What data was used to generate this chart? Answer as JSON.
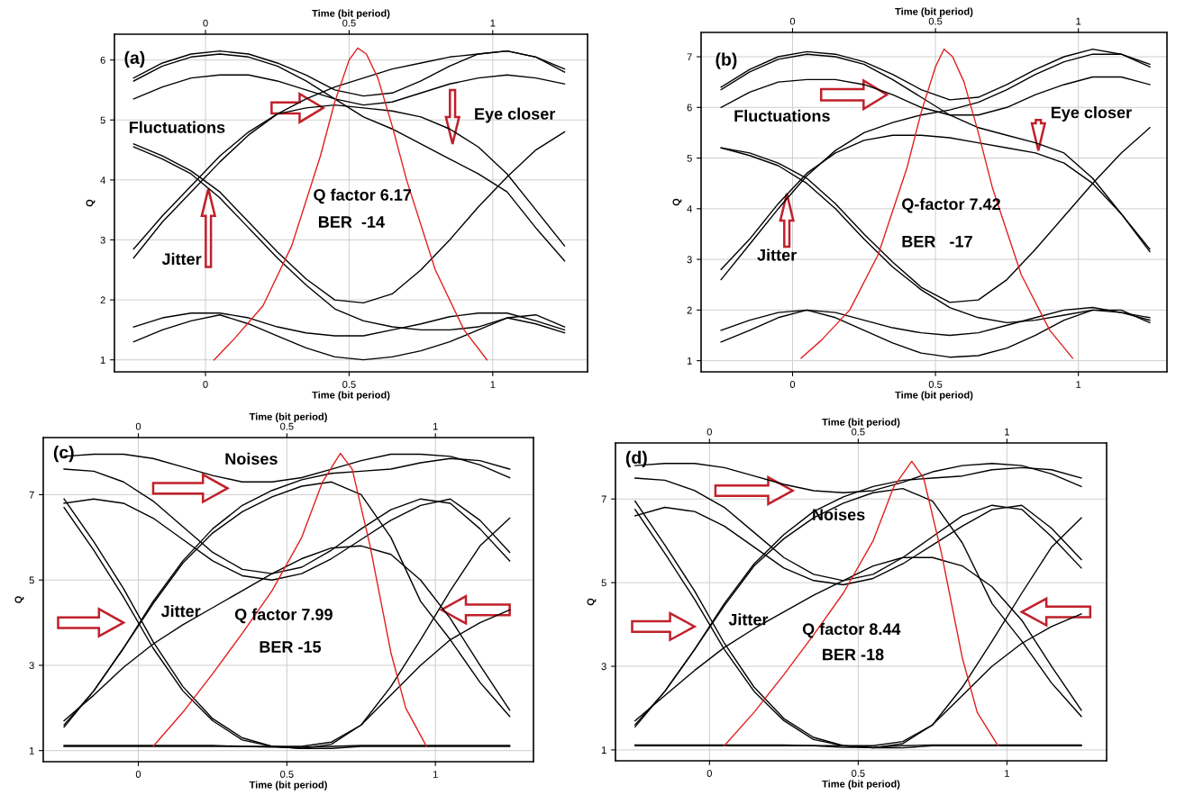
{
  "chart_data": [
    {
      "type": "line",
      "xlabel": "Time (bit period)",
      "x2label": "Time (bit period)",
      "ylabel": "Q",
      "xlim": [
        -0.317,
        1.33
      ],
      "xticks": [
        0,
        0.5,
        1
      ],
      "x2lim": [
        -0.317,
        1.33
      ],
      "x2ticks": [
        0,
        0.5,
        1
      ],
      "ylim": [
        0.8,
        6.43
      ],
      "yticks": [
        1,
        2,
        3,
        4,
        5,
        6
      ],
      "grid": true,
      "line_style": "solid",
      "marker": "none",
      "annotations": [
        "(a)",
        "Fluctuations",
        "Eye closer",
        "Jitter",
        "Q factor 6.17",
        "BER  -14"
      ],
      "x": [
        -0.25,
        -0.15,
        -0.05,
        0.05,
        0.15,
        0.25,
        0.35,
        0.45,
        0.55,
        0.65,
        0.75,
        0.85,
        0.95,
        1.05,
        1.15,
        1.25
      ],
      "series": [
        {
          "color": "#000000",
          "values": [
            5.7,
            5.95,
            6.1,
            6.15,
            6.1,
            5.95,
            5.75,
            5.5,
            5.4,
            5.45,
            5.65,
            5.9,
            6.1,
            6.15,
            6.05,
            5.8
          ]
        },
        {
          "color": "#000000",
          "values": [
            5.65,
            5.9,
            6.05,
            6.1,
            6.05,
            5.9,
            5.65,
            5.35,
            5.05,
            4.85,
            4.6,
            4.35,
            4.1,
            3.8,
            3.2,
            2.65
          ]
        },
        {
          "color": "#000000",
          "values": [
            5.35,
            5.55,
            5.7,
            5.75,
            5.75,
            5.65,
            5.5,
            5.35,
            5.25,
            5.3,
            5.45,
            5.6,
            5.7,
            5.75,
            5.7,
            5.6
          ]
        },
        {
          "color": "#000000",
          "values": [
            2.7,
            3.3,
            3.8,
            4.3,
            4.75,
            5.1,
            5.35,
            5.55,
            5.7,
            5.85,
            5.95,
            6.05,
            6.1,
            6.15,
            6.05,
            5.85
          ]
        },
        {
          "color": "#000000",
          "values": [
            2.85,
            3.4,
            3.9,
            4.4,
            4.8,
            5.1,
            5.2,
            5.25,
            5.2,
            5.15,
            5.05,
            4.85,
            4.55,
            4.1,
            3.5,
            2.9
          ]
        },
        {
          "color": "#000000",
          "values": [
            4.6,
            4.4,
            4.15,
            3.8,
            3.3,
            2.8,
            2.35,
            2.0,
            1.95,
            2.1,
            2.5,
            3.0,
            3.55,
            4.05,
            4.5,
            4.8
          ]
        },
        {
          "color": "#000000",
          "values": [
            4.55,
            4.35,
            4.1,
            3.7,
            3.2,
            2.7,
            2.25,
            1.85,
            1.65,
            1.55,
            1.5,
            1.5,
            1.55,
            1.7,
            1.6,
            1.45
          ]
        },
        {
          "color": "#000000",
          "values": [
            1.55,
            1.7,
            1.78,
            1.78,
            1.7,
            1.55,
            1.45,
            1.4,
            1.4,
            1.5,
            1.6,
            1.72,
            1.78,
            1.78,
            1.65,
            1.5
          ]
        },
        {
          "color": "#000000",
          "values": [
            1.3,
            1.5,
            1.65,
            1.75,
            1.6,
            1.4,
            1.2,
            1.05,
            1.0,
            1.05,
            1.15,
            1.3,
            1.5,
            1.7,
            1.75,
            1.55
          ]
        },
        {
          "color": "#e02020",
          "x": [
            0.03,
            0.1,
            0.2,
            0.3,
            0.4,
            0.45,
            0.5,
            0.53,
            0.56,
            0.6,
            0.65,
            0.7,
            0.8,
            0.9,
            0.98
          ],
          "values": [
            1.0,
            1.35,
            1.9,
            2.9,
            4.4,
            5.3,
            6.0,
            6.2,
            6.1,
            5.7,
            4.9,
            4.0,
            2.5,
            1.5,
            1.0
          ]
        }
      ]
    },
    {
      "type": "line",
      "xlabel": "Time (bit period)",
      "x2label": "Time (bit period)",
      "ylabel": "Q",
      "xlim": [
        -0.32,
        1.31
      ],
      "xticks": [
        0,
        0.5,
        1
      ],
      "x2lim": [
        -0.32,
        1.31
      ],
      "x2ticks": [
        0,
        0.5,
        1
      ],
      "ylim": [
        0.78,
        7.48
      ],
      "yticks": [
        1,
        2,
        3,
        4,
        5,
        6,
        7
      ],
      "grid": true,
      "line_style": "solid",
      "marker": "none",
      "annotations": [
        "(b)",
        "Fluctuations",
        "Eye closer",
        "Jitter",
        "Q-factor 7.42",
        "BER   -17"
      ],
      "x": [
        -0.25,
        -0.15,
        -0.05,
        0.05,
        0.15,
        0.25,
        0.35,
        0.45,
        0.55,
        0.65,
        0.75,
        0.85,
        0.95,
        1.05,
        1.15,
        1.25
      ],
      "series": [
        {
          "color": "#000000",
          "values": [
            6.4,
            6.75,
            7.0,
            7.1,
            7.05,
            6.9,
            6.65,
            6.35,
            6.15,
            6.2,
            6.45,
            6.75,
            7.0,
            7.15,
            7.05,
            6.8
          ]
        },
        {
          "color": "#000000",
          "values": [
            6.35,
            6.7,
            6.95,
            7.05,
            7.0,
            6.85,
            6.55,
            6.2,
            5.85,
            5.6,
            5.45,
            5.3,
            5.1,
            4.6,
            3.9,
            3.15
          ]
        },
        {
          "color": "#000000",
          "values": [
            6.0,
            6.3,
            6.5,
            6.55,
            6.55,
            6.45,
            6.25,
            6.0,
            5.85,
            5.85,
            6.0,
            6.25,
            6.45,
            6.6,
            6.6,
            6.45
          ]
        },
        {
          "color": "#000000",
          "values": [
            2.6,
            3.3,
            4.0,
            4.65,
            5.15,
            5.5,
            5.7,
            5.85,
            5.95,
            6.1,
            6.35,
            6.65,
            6.9,
            7.05,
            7.05,
            6.85
          ]
        },
        {
          "color": "#000000",
          "values": [
            2.8,
            3.4,
            4.1,
            4.7,
            5.1,
            5.35,
            5.45,
            5.45,
            5.4,
            5.3,
            5.2,
            5.1,
            4.9,
            4.5,
            3.9,
            3.2
          ]
        },
        {
          "color": "#000000",
          "values": [
            5.2,
            5.1,
            4.9,
            4.6,
            4.1,
            3.5,
            2.95,
            2.45,
            2.15,
            2.2,
            2.6,
            3.2,
            3.85,
            4.5,
            5.1,
            5.6
          ]
        },
        {
          "color": "#000000",
          "values": [
            5.2,
            5.05,
            4.85,
            4.5,
            4.0,
            3.4,
            2.85,
            2.4,
            2.05,
            1.85,
            1.75,
            1.8,
            1.9,
            2.0,
            1.95,
            1.85
          ]
        },
        {
          "color": "#000000",
          "values": [
            1.6,
            1.8,
            1.95,
            2.0,
            1.95,
            1.8,
            1.65,
            1.55,
            1.5,
            1.55,
            1.7,
            1.85,
            2.0,
            2.05,
            1.95,
            1.8
          ]
        },
        {
          "color": "#000000",
          "values": [
            1.37,
            1.6,
            1.85,
            2.0,
            1.85,
            1.6,
            1.35,
            1.15,
            1.07,
            1.1,
            1.25,
            1.5,
            1.8,
            2.0,
            2.0,
            1.75
          ]
        },
        {
          "color": "#e02020",
          "x": [
            0.03,
            0.1,
            0.2,
            0.3,
            0.4,
            0.45,
            0.5,
            0.53,
            0.56,
            0.6,
            0.65,
            0.7,
            0.8,
            0.9,
            0.98
          ],
          "values": [
            1.05,
            1.4,
            2.0,
            3.1,
            4.8,
            5.9,
            6.8,
            7.15,
            7.0,
            6.5,
            5.5,
            4.4,
            2.7,
            1.6,
            1.05
          ]
        }
      ]
    },
    {
      "type": "line",
      "xlabel": "Time (bit period)",
      "x2label": "Time (bit period)",
      "ylabel": "Q",
      "xlim": [
        -0.32,
        1.33
      ],
      "xticks": [
        0,
        0.5,
        1
      ],
      "x2lim": [
        -0.32,
        1.33
      ],
      "x2ticks": [
        0,
        0.5,
        1
      ],
      "ylim": [
        0.74,
        8.34
      ],
      "yticks": [
        1,
        3,
        5,
        7
      ],
      "grid": true,
      "line_style": "solid",
      "marker": "none",
      "annotations": [
        "(c)",
        "Noises",
        "Jitter",
        "Q factor 7.99",
        "BER -15"
      ],
      "x": [
        -0.25,
        -0.15,
        -0.05,
        0.05,
        0.15,
        0.25,
        0.35,
        0.45,
        0.55,
        0.65,
        0.75,
        0.85,
        0.95,
        1.05,
        1.15,
        1.25
      ],
      "series": [
        {
          "color": "#000000",
          "values": [
            7.9,
            7.95,
            7.95,
            7.85,
            7.65,
            7.45,
            7.3,
            7.3,
            7.4,
            7.6,
            7.8,
            7.95,
            7.95,
            7.9,
            7.7,
            7.4
          ]
        },
        {
          "color": "#000000",
          "values": [
            7.6,
            7.55,
            7.3,
            6.85,
            6.25,
            5.65,
            5.25,
            5.15,
            5.3,
            5.7,
            6.2,
            6.65,
            6.9,
            6.8,
            6.2,
            5.45
          ]
        },
        {
          "color": "#000000",
          "values": [
            6.8,
            6.9,
            6.8,
            6.45,
            5.95,
            5.45,
            5.1,
            5.0,
            5.15,
            5.5,
            5.95,
            6.4,
            6.75,
            6.9,
            6.4,
            5.65
          ]
        },
        {
          "color": "#000000",
          "values": [
            1.55,
            2.4,
            3.4,
            4.5,
            5.45,
            6.2,
            6.75,
            7.1,
            7.35,
            7.5,
            7.55,
            7.6,
            7.75,
            7.85,
            7.8,
            7.6
          ]
        },
        {
          "color": "#000000",
          "values": [
            1.6,
            2.4,
            3.4,
            4.45,
            5.4,
            6.1,
            6.6,
            6.95,
            7.2,
            7.3,
            7.0,
            6.0,
            4.5,
            3.6,
            2.6,
            1.8
          ]
        },
        {
          "color": "#000000",
          "values": [
            6.9,
            5.9,
            4.8,
            3.55,
            2.5,
            1.75,
            1.3,
            1.1,
            1.05,
            1.15,
            1.6,
            2.5,
            3.6,
            4.75,
            5.8,
            6.45
          ]
        },
        {
          "color": "#000000",
          "values": [
            6.7,
            5.7,
            4.6,
            3.4,
            2.4,
            1.7,
            1.25,
            1.1,
            1.05,
            1.05,
            1.1,
            1.1,
            1.1,
            1.1,
            1.1,
            1.1
          ]
        },
        {
          "color": "#000000",
          "values": [
            1.7,
            2.3,
            2.95,
            3.5,
            3.95,
            4.35,
            4.75,
            5.15,
            5.5,
            5.75,
            5.8,
            5.6,
            5.0,
            4.1,
            3.0,
            1.95
          ]
        },
        {
          "color": "#000000",
          "values": [
            1.1,
            1.1,
            1.1,
            1.1,
            1.1,
            1.1,
            1.1,
            1.1,
            1.1,
            1.2,
            1.6,
            2.3,
            3.0,
            3.6,
            4.0,
            4.3
          ]
        },
        {
          "color": "#000000",
          "values": [
            1.12,
            1.12,
            1.12,
            1.12,
            1.12,
            1.12,
            1.1,
            1.08,
            1.08,
            1.1,
            1.12,
            1.12,
            1.12,
            1.12,
            1.12,
            1.12
          ]
        },
        {
          "color": "#e02020",
          "x": [
            0.05,
            0.15,
            0.25,
            0.35,
            0.45,
            0.55,
            0.62,
            0.68,
            0.72,
            0.78,
            0.85,
            0.9,
            0.97
          ],
          "values": [
            1.1,
            1.9,
            2.8,
            3.75,
            4.75,
            6.0,
            7.3,
            7.97,
            7.6,
            5.8,
            3.3,
            2.0,
            1.1
          ]
        }
      ]
    },
    {
      "type": "line",
      "xlabel": "Time (bit period)",
      "x2label": "Time (bit period)",
      "ylabel": "Q",
      "xlim": [
        -0.316,
        1.335
      ],
      "xticks": [
        0,
        0.5,
        1
      ],
      "x2lim": [
        -0.316,
        1.335
      ],
      "x2ticks": [
        0,
        0.5,
        1
      ],
      "ylim": [
        0.74,
        8.34
      ],
      "yticks": [
        1,
        3,
        5,
        7
      ],
      "grid": true,
      "line_style": "solid",
      "marker": "none",
      "annotations": [
        "(d)",
        "Noises",
        "Jitter",
        "Q factor 8.44",
        "BER -18"
      ],
      "x": [
        -0.25,
        -0.15,
        -0.05,
        0.05,
        0.15,
        0.25,
        0.35,
        0.45,
        0.55,
        0.65,
        0.75,
        0.85,
        0.95,
        1.05,
        1.15,
        1.25
      ],
      "series": [
        {
          "color": "#000000",
          "values": [
            7.8,
            7.85,
            7.85,
            7.75,
            7.55,
            7.35,
            7.2,
            7.15,
            7.2,
            7.4,
            7.65,
            7.8,
            7.85,
            7.8,
            7.6,
            7.3
          ]
        },
        {
          "color": "#000000",
          "values": [
            7.5,
            7.45,
            7.2,
            6.8,
            6.2,
            5.6,
            5.2,
            5.05,
            5.2,
            5.6,
            6.1,
            6.6,
            6.85,
            6.75,
            6.1,
            5.35
          ]
        },
        {
          "color": "#000000",
          "values": [
            6.6,
            6.8,
            6.7,
            6.35,
            5.85,
            5.35,
            5.05,
            4.95,
            5.1,
            5.45,
            5.9,
            6.35,
            6.75,
            6.85,
            6.3,
            5.55
          ]
        },
        {
          "color": "#000000",
          "values": [
            1.55,
            2.4,
            3.4,
            4.5,
            5.45,
            6.15,
            6.7,
            7.05,
            7.3,
            7.45,
            7.5,
            7.55,
            7.7,
            7.75,
            7.7,
            7.5
          ]
        },
        {
          "color": "#000000",
          "values": [
            1.6,
            2.4,
            3.4,
            4.45,
            5.4,
            6.05,
            6.55,
            6.9,
            7.15,
            7.25,
            6.95,
            5.95,
            4.5,
            3.6,
            2.6,
            1.8
          ]
        },
        {
          "color": "#000000",
          "values": [
            6.95,
            5.9,
            4.8,
            3.55,
            2.5,
            1.75,
            1.3,
            1.1,
            1.05,
            1.15,
            1.6,
            2.5,
            3.6,
            4.75,
            5.85,
            6.55
          ]
        },
        {
          "color": "#000000",
          "values": [
            6.75,
            5.7,
            4.6,
            3.4,
            2.4,
            1.7,
            1.25,
            1.1,
            1.05,
            1.05,
            1.1,
            1.1,
            1.1,
            1.1,
            1.1,
            1.1
          ]
        },
        {
          "color": "#000000",
          "values": [
            1.7,
            2.3,
            2.9,
            3.45,
            3.9,
            4.3,
            4.7,
            5.05,
            5.4,
            5.6,
            5.6,
            5.4,
            4.9,
            4.1,
            3.0,
            1.95
          ]
        },
        {
          "color": "#000000",
          "values": [
            1.1,
            1.1,
            1.1,
            1.1,
            1.1,
            1.1,
            1.1,
            1.1,
            1.1,
            1.2,
            1.6,
            2.3,
            3.0,
            3.55,
            3.95,
            4.25
          ]
        },
        {
          "color": "#000000",
          "values": [
            1.12,
            1.12,
            1.12,
            1.12,
            1.12,
            1.12,
            1.1,
            1.06,
            1.06,
            1.1,
            1.12,
            1.12,
            1.12,
            1.12,
            1.12,
            1.12
          ]
        },
        {
          "color": "#e02020",
          "x": [
            0.05,
            0.15,
            0.25,
            0.35,
            0.45,
            0.55,
            0.62,
            0.68,
            0.72,
            0.78,
            0.85,
            0.9,
            0.97
          ],
          "values": [
            1.1,
            1.9,
            2.8,
            3.75,
            4.75,
            6.0,
            7.3,
            7.9,
            7.5,
            5.7,
            3.2,
            1.9,
            1.1
          ]
        }
      ]
    }
  ]
}
